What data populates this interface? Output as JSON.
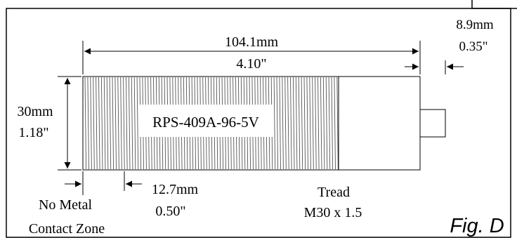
{
  "part": {
    "label": "RPS-409A-96-5V"
  },
  "dimensions": {
    "length_mm": "104.1mm",
    "length_in": "4.10\"",
    "tip_mm": "8.9mm",
    "tip_in": "0.35\"",
    "diameter_mm": "30mm",
    "diameter_in": "1.18\"",
    "no_metal_mm": "12.7mm",
    "no_metal_in": "0.50\""
  },
  "notes": {
    "no_metal_line1": "No Metal",
    "no_metal_line2": "Contact Zone",
    "thread_line1": "Tread",
    "thread_line2": "M30 x 1.5"
  },
  "figure": {
    "label": "Fig. D"
  }
}
